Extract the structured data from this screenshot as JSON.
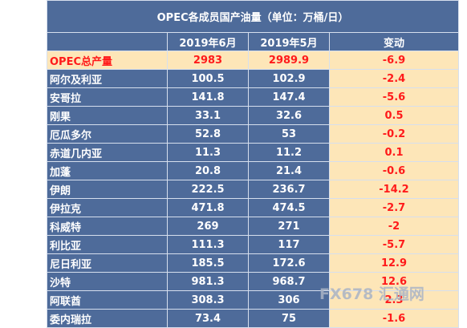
{
  "chart_data": {
    "type": "table",
    "title": "OPEC各成员国产油量（单位：万桶/日）",
    "columns": [
      "",
      "2019年6月",
      "2019年5月",
      "变动"
    ],
    "total": {
      "name": "OPEC总产量",
      "jun": "2983",
      "may": "2989.9",
      "change": "-6.9"
    },
    "rows": [
      {
        "name": "阿尔及利亚",
        "jun": "100.5",
        "may": "102.9",
        "change": "-2.4"
      },
      {
        "name": "安哥拉",
        "jun": "141.8",
        "may": "147.4",
        "change": "-5.6"
      },
      {
        "name": "刚果",
        "jun": "33.1",
        "may": "32.6",
        "change": "0.5"
      },
      {
        "name": "厄瓜多尔",
        "jun": "52.8",
        "may": "53",
        "change": "-0.2"
      },
      {
        "name": "赤道几内亚",
        "jun": "11.3",
        "may": "11.2",
        "change": "0.1"
      },
      {
        "name": "加蓬",
        "jun": "20.8",
        "may": "21.4",
        "change": "-0.6"
      },
      {
        "name": "伊朗",
        "jun": "222.5",
        "may": "236.7",
        "change": "-14.2"
      },
      {
        "name": "伊拉克",
        "jun": "471.8",
        "may": "474.5",
        "change": "-2.7"
      },
      {
        "name": "科威特",
        "jun": "269",
        "may": "271",
        "change": "-2"
      },
      {
        "name": "利比亚",
        "jun": "111.3",
        "may": "117",
        "change": "-5.7"
      },
      {
        "name": "尼日利亚",
        "jun": "185.5",
        "may": "172.6",
        "change": "12.9"
      },
      {
        "name": "沙特",
        "jun": "981.3",
        "may": "968.7",
        "change": "12.6"
      },
      {
        "name": "阿联酋",
        "jun": "308.3",
        "may": "306",
        "change": "2.3"
      },
      {
        "name": "委内瑞拉",
        "jun": "73.4",
        "may": "75",
        "change": "-1.6"
      }
    ]
  },
  "watermark": "FX678 汇通网"
}
